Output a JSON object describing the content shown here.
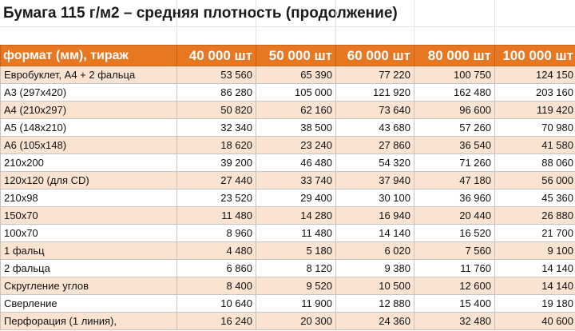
{
  "title": "Бумага 115 г/м2 – средняя плотность (продолжение)",
  "table": {
    "headers": [
      "формат (мм), тираж",
      "40 000 шт",
      "50 000 шт",
      "60 000 шт",
      "80 000 шт",
      "100 000 шт"
    ],
    "rows": [
      [
        "Евробуклет,  А4 + 2 фальца",
        "53 560",
        "65 390",
        "77 220",
        "100 750",
        "124 150"
      ],
      [
        "А3 (297х420)",
        "86 280",
        "105 000",
        "121 920",
        "162 480",
        "203 160"
      ],
      [
        "А4 (210х297)",
        "50 820",
        "62 160",
        "73 640",
        "96 600",
        "119 420"
      ],
      [
        "А5 (148х210)",
        "32 340",
        "38 500",
        "43 680",
        "57 260",
        "70 980"
      ],
      [
        "А6 (105х148)",
        "18 620",
        "23 240",
        "27 860",
        "36 540",
        "41 580"
      ],
      [
        "210х200",
        "39 200",
        "46 480",
        "54 320",
        "71 260",
        "88 060"
      ],
      [
        "120х120 (для CD)",
        "27 440",
        "33 740",
        "37 940",
        "47 180",
        "56 000"
      ],
      [
        "210х98",
        "23 520",
        "29 400",
        "30 100",
        "36 960",
        "45 360"
      ],
      [
        "150х70",
        "11 480",
        "14 280",
        "16 940",
        "20 440",
        "26 880"
      ],
      [
        "100х70",
        "8 960",
        "11 480",
        "14 140",
        "16 520",
        "21 700"
      ],
      [
        "1 фальц",
        "4 480",
        "5 180",
        "6 020",
        "7 560",
        "9 100"
      ],
      [
        "2 фальца",
        "6 860",
        "8 120",
        "9 380",
        "11 760",
        "14 140"
      ],
      [
        "Скругление углов",
        "8 400",
        "9 520",
        "10 500",
        "12 600",
        "14 140"
      ],
      [
        "Сверление",
        "10 640",
        "11 900",
        "12 880",
        "15 400",
        "19 180"
      ],
      [
        "Перфорация (1 линия),",
        "16 240",
        "20 300",
        "24 360",
        "32 480",
        "40 600"
      ]
    ]
  }
}
